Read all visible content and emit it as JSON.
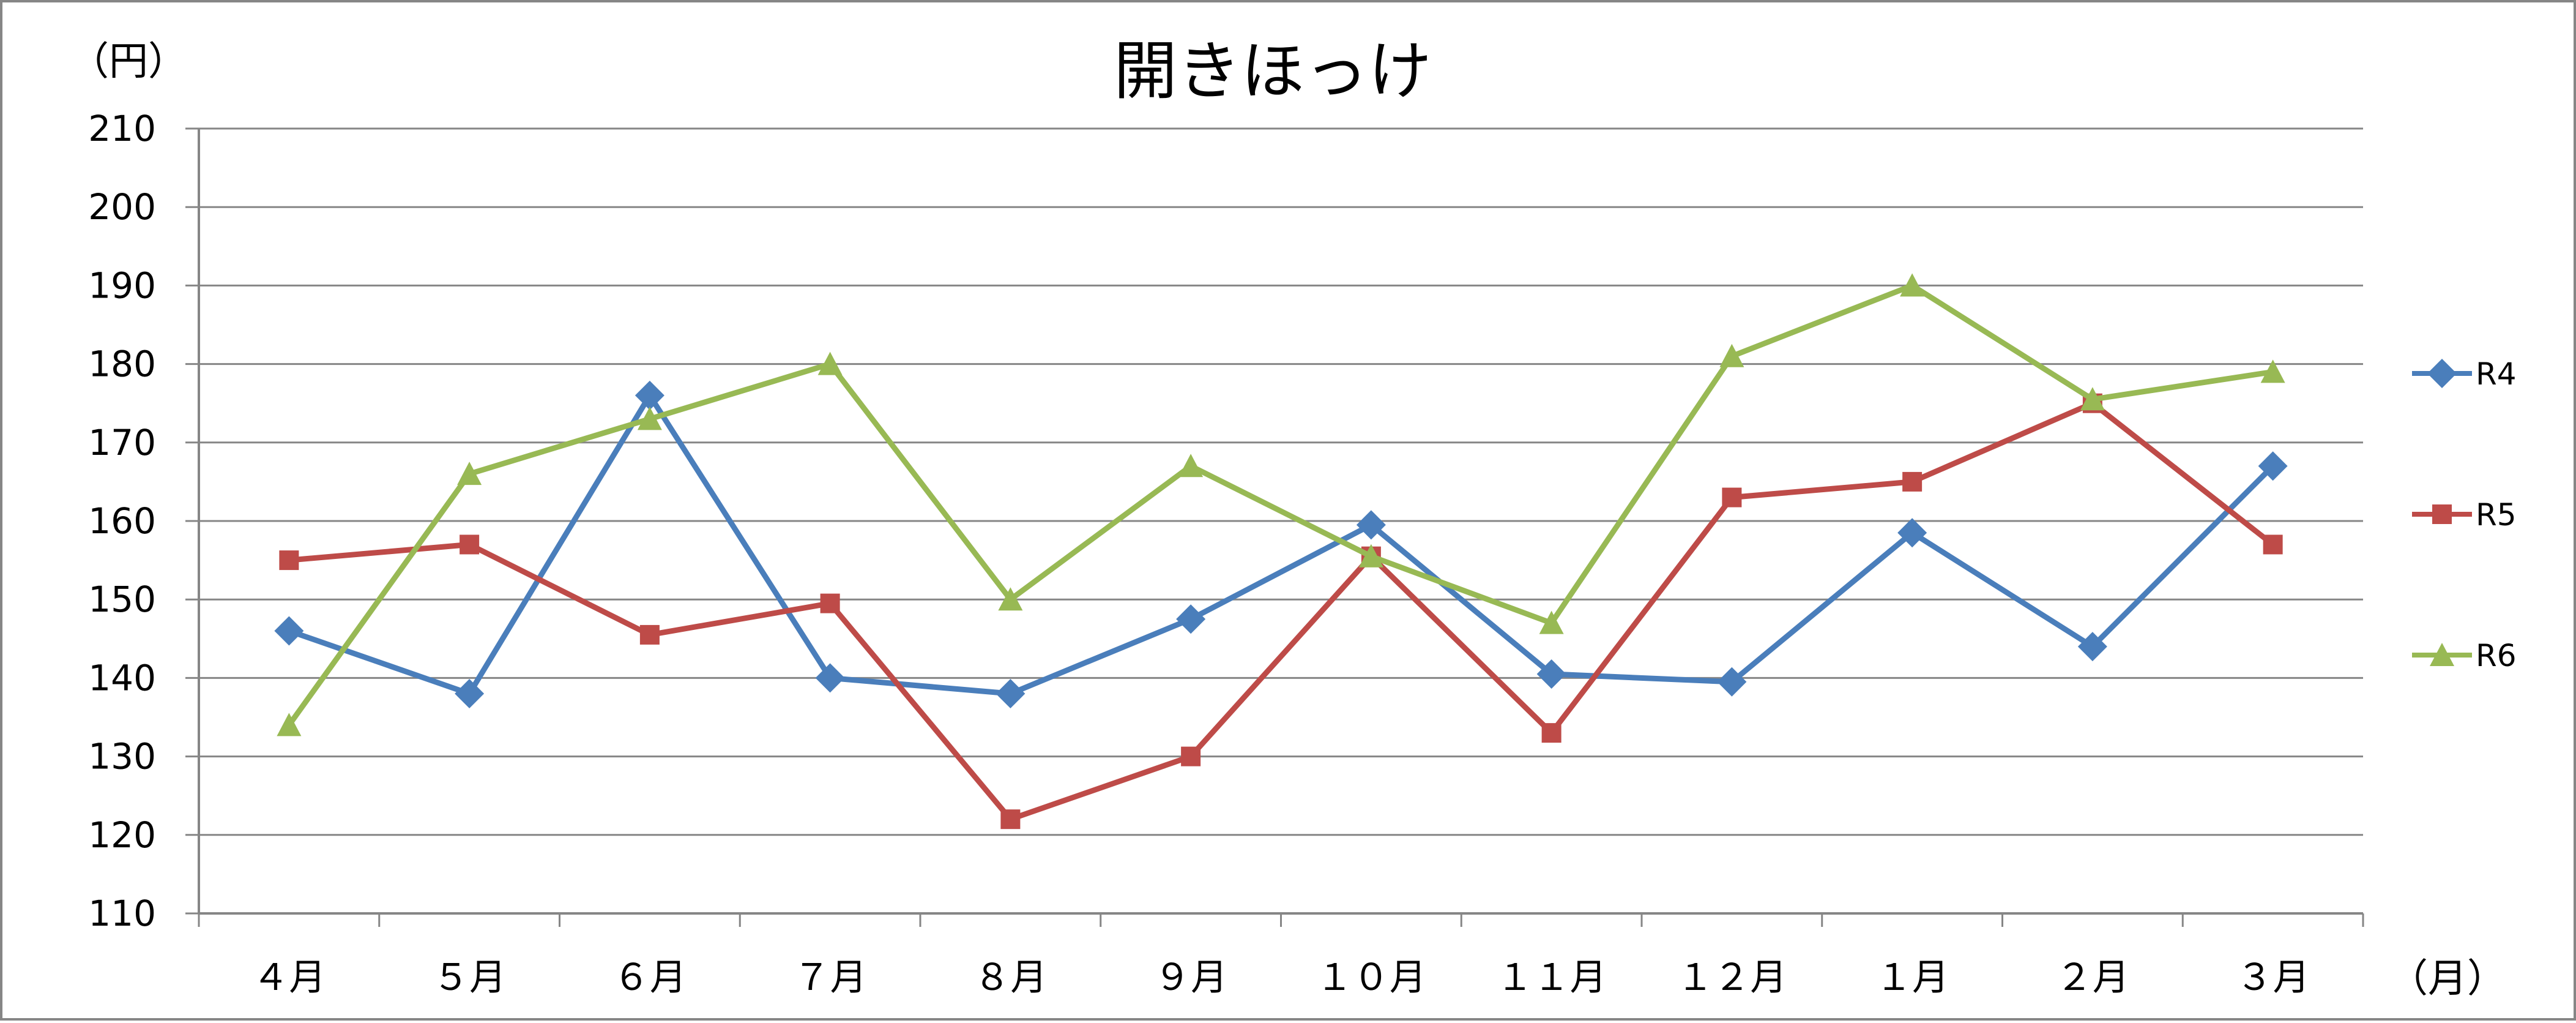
{
  "chart_data": {
    "type": "line",
    "title": "開きほっけ",
    "ylabel": "（円）",
    "xlabel": "（月）",
    "categories": [
      "４月",
      "５月",
      "６月",
      "７月",
      "８月",
      "９月",
      "１０月",
      "１１月",
      "１２月",
      "１月",
      "２月",
      "３月"
    ],
    "ylim": [
      110,
      210
    ],
    "yticks": [
      110,
      120,
      130,
      140,
      150,
      160,
      170,
      180,
      190,
      200,
      210
    ],
    "grid": true,
    "legend_position": "right",
    "series": [
      {
        "name": "R4",
        "color": "#4a7ebb",
        "marker": "diamond",
        "values": [
          146,
          138,
          176,
          140,
          138,
          147.5,
          159.5,
          140.5,
          139.5,
          158.5,
          144,
          167
        ]
      },
      {
        "name": "R5",
        "color": "#be4b48",
        "marker": "square",
        "values": [
          155,
          157,
          145.5,
          149.5,
          122,
          130,
          155.5,
          133,
          163,
          165,
          175,
          157
        ]
      },
      {
        "name": "R6",
        "color": "#98b954",
        "marker": "triangle",
        "values": [
          134,
          166,
          173,
          180,
          150,
          167,
          155.5,
          147,
          181,
          190,
          175.5,
          179
        ]
      }
    ]
  }
}
